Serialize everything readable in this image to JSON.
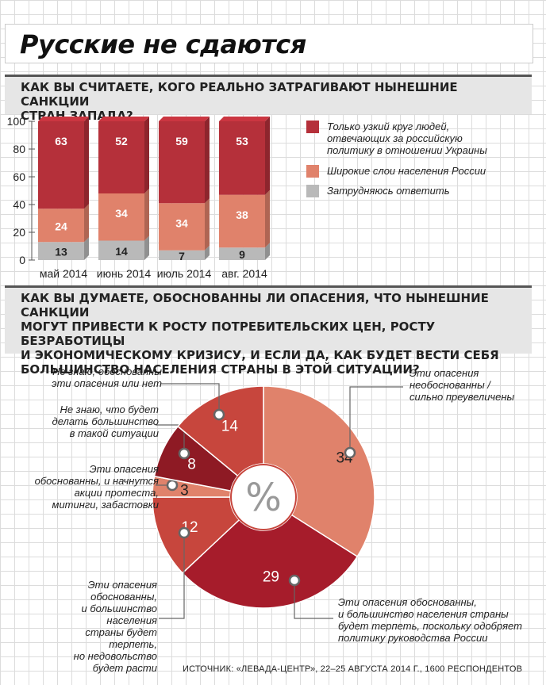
{
  "title": "Русские не сдаются",
  "question1": "КАК ВЫ СЧИТАЕТЕ, КОГО РЕАЛЬНО ЗАТРАГИВАЮТ НЫНЕШНИЕ САНКЦИИ\nСТРАН ЗАПАДА?",
  "question2": "КАК ВЫ ДУМАЕТЕ, ОБОСНОВАННЫ ЛИ ОПАСЕНИЯ, ЧТО НЫНЕШНИЕ САНКЦИИ\nМОГУТ ПРИВЕСТИ К РОСТУ ПОТРЕБИТЕЛЬСКИХ ЦЕН, РОСТУ БЕЗРАБОТИЦЫ\nИ ЭКОНОМИЧЕСКОМУ КРИЗИСУ, И ЕСЛИ ДА, КАК БУДЕТ ВЕСТИ СЕБЯ\nБОЛЬШИНСТВО НАСЕЛЕНИЯ СТРАНЫ В ЭТОЙ СИТУАЦИИ?",
  "source": "ИСТОЧНИК: «ЛЕВАДА-ЦЕНТР», 22–25 АВГУСТА 2014 Г., 1600 РЕСПОНДЕНТОВ",
  "colors": {
    "dark": "#a61c2b",
    "medium": "#c7463d",
    "light": "#e0826b",
    "gray": "#b9b9b9",
    "darkest": "#8e1a24"
  },
  "chart_data": [
    {
      "type": "bar",
      "stacked": true,
      "categories": [
        "май 2014",
        "июнь 2014",
        "июль 2014",
        "авг. 2014"
      ],
      "ylim": [
        0,
        100
      ],
      "yticks": [
        0,
        20,
        40,
        60,
        80,
        100
      ],
      "series": [
        {
          "name": "Затрудняюсь ответить",
          "values": [
            13,
            14,
            7,
            9
          ],
          "color": "#b9b9b9"
        },
        {
          "name": "Широкие слои населения России",
          "values": [
            24,
            34,
            34,
            38
          ],
          "color": "#e0826b"
        },
        {
          "name": "Только узкий круг людей, отвечающих за российскую политику в отношении Украины",
          "values": [
            63,
            52,
            59,
            53
          ],
          "color": "#b5303a"
        }
      ],
      "legend": [
        {
          "label": "Только узкий круг людей,\nотвечающих за российскую\nполитику в отношении Украины",
          "color": "#b5303a"
        },
        {
          "label": "Широкие слои населения России",
          "color": "#e0826b"
        },
        {
          "label": "Затрудняюсь ответить",
          "color": "#b9b9b9"
        }
      ]
    },
    {
      "type": "pie",
      "center_label": "%",
      "slices": [
        {
          "label": "Эти опасения\nнеобоснованны /\nсильно преувеличены",
          "value": 34,
          "color": "#e0826b"
        },
        {
          "label": "Эти опасения обоснованны,\nи большинство населения страны\nбудет терпеть, поскольку одобряет\nполитику руководства России",
          "value": 29,
          "color": "#a61c2b"
        },
        {
          "label": "Эти опасения\nобоснованны,\nи большинство населения\nстраны будет терпеть,\nно недовольство\nбудет расти",
          "value": 12,
          "color": "#c7463d"
        },
        {
          "label": "Эти опасения\nобоснованны, и начнутся\nакции протеста,\nмитинги, забастовки",
          "value": 3,
          "color": "#e0826b"
        },
        {
          "label": "Не знаю, что будет\nделать большинство\nв такой ситуации",
          "value": 8,
          "color": "#8e1a24"
        },
        {
          "label": "Не знаю, обоснованны\nэти опасения или нет",
          "value": 14,
          "color": "#c7463d"
        }
      ]
    }
  ]
}
